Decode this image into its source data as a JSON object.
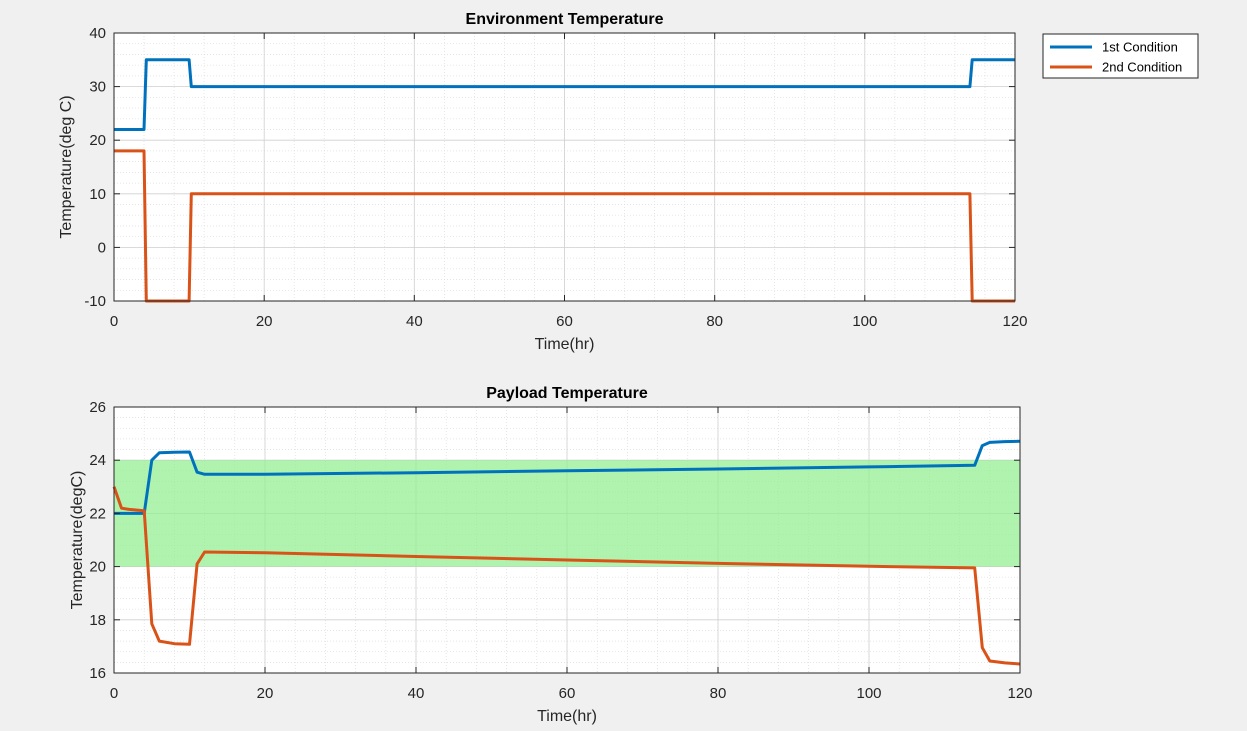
{
  "colors": {
    "series_1": "#0072bd",
    "series_2": "#d95319",
    "band": "#90ee90",
    "background": "#f0f0f0",
    "axes": "#ffffff",
    "grid": "#d0d0d0"
  },
  "legend": {
    "location": "outside top-right",
    "entries": [
      "1st Condition",
      "2nd Condition"
    ]
  },
  "chart_data": [
    {
      "type": "line",
      "title": "Environment Temperature",
      "xlabel": "Time(hr)",
      "ylabel": "Temperature(deg C)",
      "xlim": [
        0,
        120
      ],
      "ylim": [
        -10,
        40
      ],
      "xticks": [
        0,
        20,
        40,
        60,
        80,
        100,
        120
      ],
      "yticks": [
        -10,
        0,
        10,
        20,
        30,
        40
      ],
      "grid": "on (major and minor)",
      "series": [
        {
          "name": "1st Condition",
          "color": "#0072bd",
          "points": [
            [
              0,
              22
            ],
            [
              4,
              22
            ],
            [
              4.3,
              35
            ],
            [
              10,
              35
            ],
            [
              10.3,
              30
            ],
            [
              114,
              30
            ],
            [
              114.3,
              35
            ],
            [
              120,
              35
            ]
          ]
        },
        {
          "name": "2nd Condition",
          "color": "#d95319",
          "points": [
            [
              0,
              18
            ],
            [
              4,
              18
            ],
            [
              4.3,
              -10
            ],
            [
              10,
              -10
            ],
            [
              10.3,
              10
            ],
            [
              114,
              10
            ],
            [
              114.3,
              -10
            ],
            [
              120,
              -10
            ]
          ]
        }
      ]
    },
    {
      "type": "line",
      "title": "Payload Temperature",
      "xlabel": "Time(hr)",
      "ylabel": "Temperature(degC)",
      "xlim": [
        0,
        120
      ],
      "ylim": [
        16,
        26
      ],
      "xticks": [
        0,
        20,
        40,
        60,
        80,
        100,
        120
      ],
      "yticks": [
        16,
        18,
        20,
        22,
        24,
        26
      ],
      "grid": "on (major and minor)",
      "band": {
        "y_low": 20,
        "y_high": 24,
        "color": "#90ee90"
      },
      "series": [
        {
          "name": "1st Condition",
          "color": "#0072bd",
          "points": [
            [
              0,
              22
            ],
            [
              4,
              22
            ],
            [
              5,
              24
            ],
            [
              6,
              24.28
            ],
            [
              8,
              24.3
            ],
            [
              10,
              24.31
            ],
            [
              11,
              23.55
            ],
            [
              12,
              23.47
            ],
            [
              20,
              23.47
            ],
            [
              40,
              23.53
            ],
            [
              60,
              23.6
            ],
            [
              80,
              23.67
            ],
            [
              100,
              23.75
            ],
            [
              114,
              23.81
            ],
            [
              115,
              24.55
            ],
            [
              116,
              24.67
            ],
            [
              118,
              24.7
            ],
            [
              120,
              24.71
            ]
          ]
        },
        {
          "name": "2nd Condition",
          "color": "#d95319",
          "points": [
            [
              0,
              23
            ],
            [
              1,
              22.2
            ],
            [
              2,
              22.15
            ],
            [
              4,
              22.1
            ],
            [
              5,
              17.85
            ],
            [
              6,
              17.2
            ],
            [
              8,
              17.1
            ],
            [
              10,
              17.08
            ],
            [
              11,
              20.1
            ],
            [
              12,
              20.55
            ],
            [
              20,
              20.52
            ],
            [
              40,
              20.38
            ],
            [
              60,
              20.25
            ],
            [
              80,
              20.12
            ],
            [
              100,
              20.01
            ],
            [
              114,
              19.95
            ],
            [
              115,
              16.95
            ],
            [
              116,
              16.45
            ],
            [
              118,
              16.38
            ],
            [
              120,
              16.34
            ]
          ]
        }
      ]
    }
  ]
}
